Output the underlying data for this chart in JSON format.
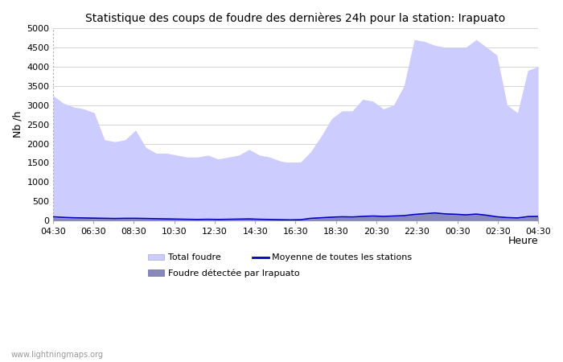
{
  "title": "Statistique des coups de foudre des dernières 24h pour la station: Irapuato",
  "xlabel": "Heure",
  "ylabel": "Nb /h",
  "background_color": "#ffffff",
  "plot_bg_color": "#ffffff",
  "ylim": [
    0,
    5000
  ],
  "yticks": [
    0,
    500,
    1000,
    1500,
    2000,
    2500,
    3000,
    3500,
    4000,
    4500,
    5000
  ],
  "x_labels": [
    "04:30",
    "06:30",
    "08:30",
    "10:30",
    "12:30",
    "14:30",
    "16:30",
    "18:30",
    "20:30",
    "22:30",
    "00:30",
    "02:30",
    "04:30"
  ],
  "watermark": "www.lightningmaps.org",
  "total_foudre_color": "#ccccff",
  "detected_color": "#8888bb",
  "moyenne_color": "#0000bb",
  "total_foudre": [
    3250,
    3050,
    2950,
    2900,
    2800,
    2100,
    2050,
    2100,
    2350,
    1900,
    1750,
    1750,
    1700,
    1650,
    1650,
    1700,
    1600,
    1650,
    1700,
    1850,
    1700,
    1650,
    1550,
    1500,
    1520,
    1800,
    2200,
    2650,
    2850,
    2850,
    3150,
    3100,
    2900,
    3000,
    3500,
    4700,
    4650,
    4550,
    4500,
    4500,
    4500,
    4700,
    4500,
    4300,
    3000,
    2800,
    3900,
    4000
  ],
  "detected": [
    80,
    70,
    65,
    60,
    55,
    50,
    45,
    50,
    50,
    45,
    40,
    35,
    30,
    25,
    20,
    25,
    20,
    25,
    30,
    35,
    25,
    20,
    15,
    12,
    15,
    50,
    65,
    80,
    90,
    85,
    100,
    110,
    100,
    110,
    120,
    150,
    170,
    190,
    165,
    155,
    140,
    160,
    130,
    90,
    70,
    60,
    95,
    100
  ],
  "moyenne": [
    100,
    85,
    75,
    70,
    65,
    60,
    55,
    60,
    60,
    55,
    50,
    45,
    40,
    35,
    30,
    35,
    30,
    35,
    40,
    45,
    35,
    30,
    25,
    20,
    25,
    60,
    75,
    90,
    100,
    95,
    110,
    120,
    110,
    120,
    130,
    160,
    180,
    200,
    175,
    165,
    150,
    170,
    140,
    100,
    80,
    70,
    105,
    110
  ]
}
